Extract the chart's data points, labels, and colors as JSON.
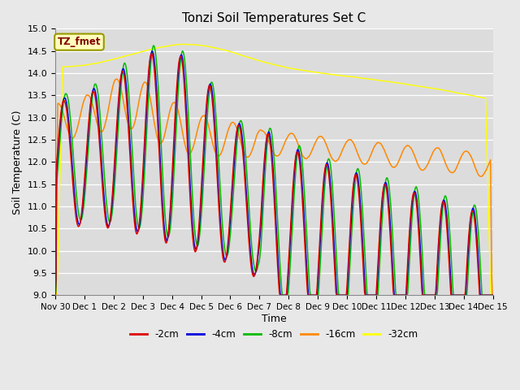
{
  "title": "Tonzi Soil Temperatures Set C",
  "xlabel": "Time",
  "ylabel": "Soil Temperature (C)",
  "ylim": [
    9.0,
    15.0
  ],
  "yticks": [
    9.0,
    9.5,
    10.0,
    10.5,
    11.0,
    11.5,
    12.0,
    12.5,
    13.0,
    13.5,
    14.0,
    14.5,
    15.0
  ],
  "colors": {
    "-2cm": "#dd0000",
    "-4cm": "#0000dd",
    "-8cm": "#00bb00",
    "-16cm": "#ff8800",
    "-32cm": "#ffff00"
  },
  "legend_label": "TZ_fmet",
  "bg_color": "#dcdcdc",
  "fig_color": "#e8e8e8"
}
